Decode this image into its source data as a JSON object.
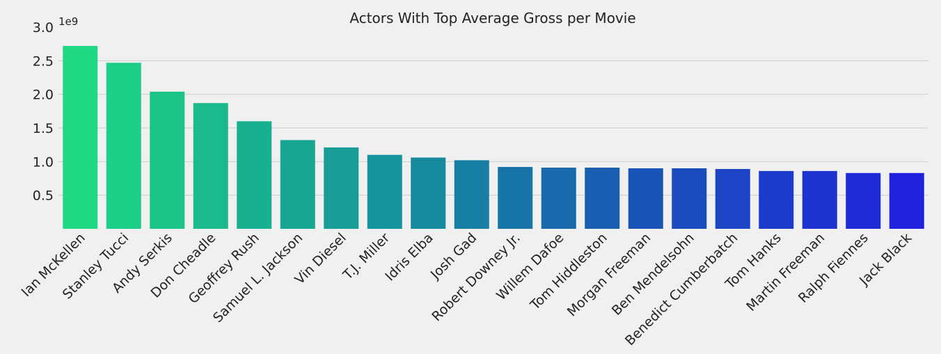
{
  "chart_data": {
    "type": "bar",
    "title": "Actors With Top Average Gross per Movie",
    "xlabel": "",
    "ylabel": "",
    "y_offset_label": "1e9",
    "ylim": [
      0,
      3000000000
    ],
    "y_ticks": [
      500000000,
      1000000000,
      1500000000,
      2000000000,
      2500000000,
      3000000000
    ],
    "y_tick_labels": [
      "0.5",
      "1.0",
      "1.5",
      "2.0",
      "2.5",
      "3.0"
    ],
    "grid": true,
    "categories": [
      "Ian McKellen",
      "Stanley Tucci",
      "Andy Serkis",
      "Don Cheadle",
      "Geoffrey Rush",
      "Samuel L. Jackson",
      "Vin Diesel",
      "T.J. Miller",
      "Idris Elba",
      "Josh Gad",
      "Robert Downey Jr.",
      "Willem Dafoe",
      "Tom Hiddleston",
      "Morgan Freeman",
      "Ben Mendelsohn",
      "Benedict Cumberbatch",
      "Tom Hanks",
      "Martin Freeman",
      "Ralph Fiennes",
      "Jack Black"
    ],
    "values": [
      2720000000,
      2470000000,
      2040000000,
      1870000000,
      1600000000,
      1320000000,
      1210000000,
      1100000000,
      1060000000,
      1020000000,
      920000000,
      910000000,
      910000000,
      900000000,
      900000000,
      890000000,
      860000000,
      860000000,
      830000000,
      830000000
    ],
    "colors": [
      "#1ed884",
      "#1dcf86",
      "#1bc487",
      "#1aba8b",
      "#19b08f",
      "#18a692",
      "#179d96",
      "#16939b",
      "#17899e",
      "#167fa3",
      "#1774a8",
      "#186aad",
      "#185fb2",
      "#1a54b8",
      "#1b4cbe",
      "#1c44c4",
      "#1d3bca",
      "#1e33d0",
      "#1f2ad6",
      "#2021dc"
    ]
  }
}
